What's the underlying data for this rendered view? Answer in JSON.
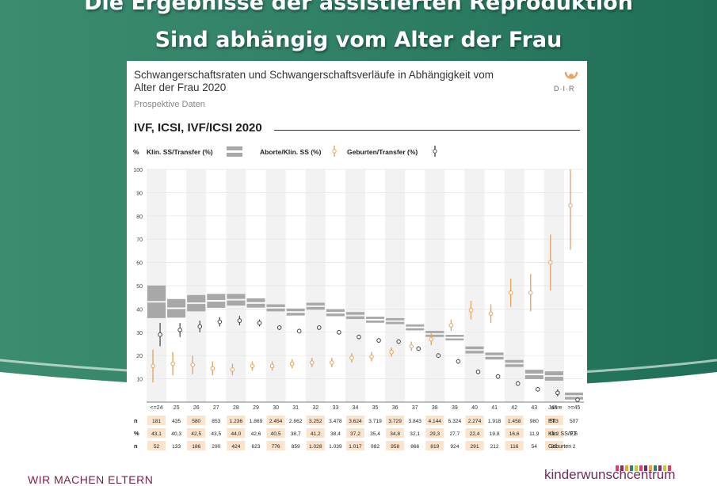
{
  "slide": {
    "title_line1": "Die Ergebnisse der assistierten Reproduktion",
    "title_line2": "Sind abhängig vom Alter der Frau",
    "footer_left": "WIR MACHEN ELTERN",
    "brand": "kinderwunschcentrum"
  },
  "logo_text": "D·I·R",
  "colors": {
    "gray_band": "#a8a8a8",
    "orange": "#e5a563",
    "dark": "#444444",
    "bg_green": "#3b8a6e",
    "table_highlight": "#fbe3cc",
    "brand": "#6c2d5b"
  },
  "chart_data": {
    "type": "range-bar-dot",
    "title": "Schwangerschaftsraten und Schwangerschaftsverläufe in Abhängigkeit vom Alter der Frau 2020",
    "subtitle": "Prospektive Daten",
    "section_heading": "IVF, ICSI, IVF/ICSI 2020",
    "ylabel": "%",
    "xlabel": "Jahre",
    "ylim": [
      0,
      100
    ],
    "yticks": [
      10,
      20,
      30,
      40,
      50,
      60,
      70,
      80,
      90,
      100
    ],
    "legend": [
      "Klin. SS/Transfer (%)",
      "Aborte/Klin. SS (%)",
      "Geburten/Transfer (%)"
    ],
    "categories": [
      "<=24",
      "25",
      "26",
      "27",
      "28",
      "29",
      "30",
      "31",
      "32",
      "33",
      "34",
      "35",
      "36",
      "37",
      "38",
      "39",
      "40",
      "41",
      "42",
      "43",
      "44",
      ">=45"
    ],
    "series": [
      {
        "name": "Klin. SS/Transfer (%)",
        "values": [
          43.1,
          40.3,
          42.5,
          43.5,
          44.0,
          42.6,
          40.5,
          38.7,
          41.2,
          38.4,
          37.2,
          35.4,
          34.8,
          32.1,
          29.3,
          27.7,
          22.4,
          19.8,
          16.6,
          11.9,
          11.2,
          2.6
        ],
        "ci": [
          7,
          4,
          3.5,
          3,
          2.5,
          2,
          1.5,
          1.5,
          1.5,
          1.5,
          1.5,
          1.3,
          1.3,
          1.3,
          1.3,
          1.2,
          1.5,
          1.5,
          1.5,
          2,
          2,
          1.5
        ]
      },
      {
        "name": "Aborte/Klin. SS (%)",
        "values": [
          15.5,
          16.5,
          16,
          14.5,
          14,
          15.5,
          15.5,
          16.5,
          17,
          17,
          19,
          19.5,
          21.5,
          24,
          27,
          33,
          39.5,
          38,
          47,
          47,
          60,
          84.5
        ],
        "ci": [
          7,
          5,
          4,
          3,
          2.5,
          2,
          2,
          2,
          2,
          2,
          2,
          2,
          2,
          2,
          2.5,
          2.5,
          4,
          4,
          6,
          8,
          12,
          19
        ]
      },
      {
        "name": "Geburten/Transfer (%)",
        "values": [
          29,
          31,
          32.5,
          34.5,
          35,
          34,
          32,
          30.5,
          32,
          30,
          28,
          26.5,
          26,
          23,
          20,
          17.5,
          13,
          11,
          8,
          5.5,
          4,
          1
        ],
        "ci": [
          5,
          3,
          2.5,
          2,
          2,
          1.5,
          1,
          1,
          1,
          1,
          1,
          1,
          1,
          1,
          1,
          1,
          1,
          1,
          1,
          1,
          1.5,
          0.5
        ]
      }
    ],
    "table": {
      "rows": [
        {
          "prefix": "n",
          "label": "ET",
          "values": [
            "181",
            "435",
            "580",
            "853",
            "1.236",
            "1.869",
            "2.454",
            "2.862",
            "3.252",
            "3.478",
            "3.624",
            "3.719",
            "3.729",
            "3.843",
            "4.144",
            "5.324",
            "2.274",
            "1.918",
            "1.458",
            "980",
            "583",
            "507"
          ]
        },
        {
          "prefix": "%",
          "label": "Klin. SS/ET",
          "values": [
            "43,1",
            "40,3",
            "42,5",
            "43,5",
            "44,0",
            "42,6",
            "40,5",
            "38,7",
            "41,2",
            "38,4",
            "37,2",
            "35,4",
            "34,8",
            "32,1",
            "29,3",
            "27,7",
            "22,4",
            "19,8",
            "16,6",
            "11,9",
            "11,2",
            "2,6"
          ]
        },
        {
          "prefix": "n",
          "label": "Geburten",
          "values": [
            "52",
            "133",
            "186",
            "290",
            "424",
            "623",
            "776",
            "859",
            "1.028",
            "1.039",
            "1.017",
            "982",
            "958",
            "866",
            "819",
            "924",
            "291",
            "212",
            "116",
            "54",
            "22",
            "2"
          ]
        }
      ]
    }
  }
}
